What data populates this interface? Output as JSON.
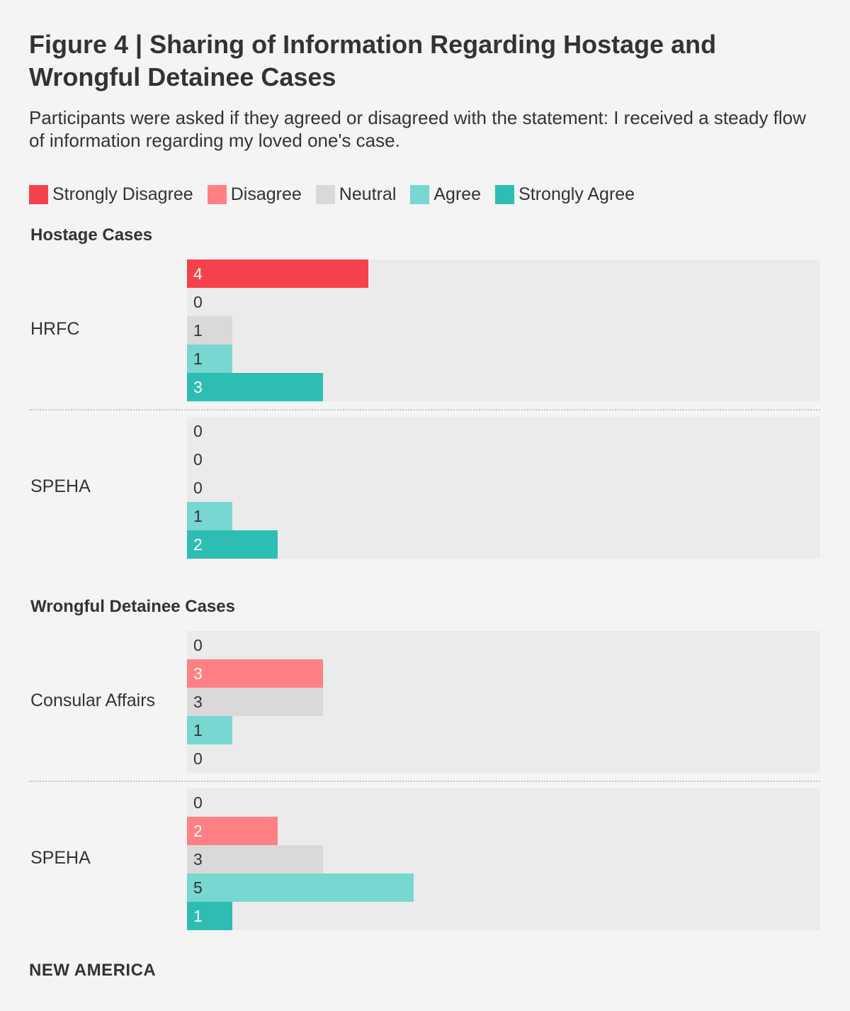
{
  "title": "Figure 4 | Sharing of Information Regarding Hostage and Wrongful Detainee Cases",
  "subtitle": "Participants were asked if they agreed or disagreed with the statement: I received a steady flow of information regarding my loved one's case.",
  "footer": "NEW AMERICA",
  "chart_data": {
    "type": "bar",
    "orientation": "horizontal",
    "legend_position": "top-left",
    "categories": [
      "Strongly Disagree",
      "Disagree",
      "Neutral",
      "Agree",
      "Strongly Agree"
    ],
    "colors": [
      "#f5414b",
      "#ff8084",
      "#d9d9d9",
      "#78d7d0",
      "#2ebdb3"
    ],
    "label_on_dark": [
      true,
      true,
      false,
      false,
      true
    ],
    "scale_max": 14,
    "sections": [
      {
        "title": "Hostage Cases",
        "groups": [
          {
            "name": "HRFC",
            "values": [
              4,
              0,
              1,
              1,
              3
            ]
          },
          {
            "name": "SPEHA",
            "values": [
              0,
              0,
              0,
              1,
              2
            ]
          }
        ]
      },
      {
        "title": "Wrongful Detainee Cases",
        "groups": [
          {
            "name": "Consular Affairs",
            "values": [
              0,
              3,
              3,
              1,
              0
            ]
          },
          {
            "name": "SPEHA",
            "values": [
              0,
              2,
              3,
              5,
              1
            ]
          }
        ]
      }
    ]
  }
}
